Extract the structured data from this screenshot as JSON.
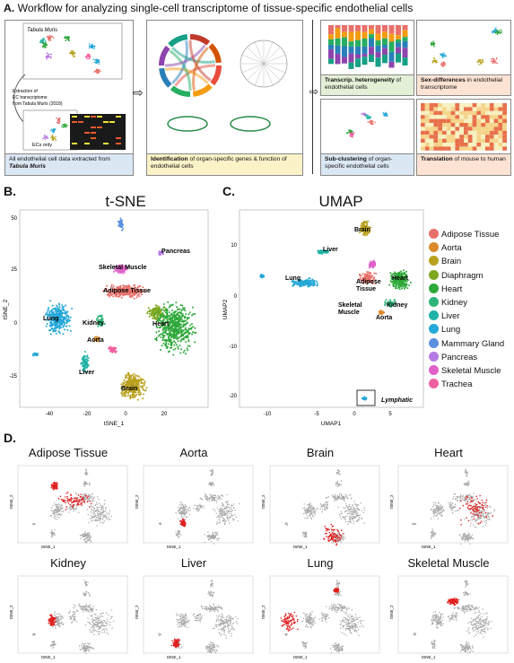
{
  "panelA": {
    "letter": "A.",
    "title": "Workflow for analyzing single-cell transcriptome of tissue-specific endothelial cells",
    "tabula_label": "Tabula Muris",
    "extraction_text": [
      "Extraction of",
      "EC transcriptome",
      "from Tabula Muris (2018)"
    ],
    "ecs_only": "ECs only",
    "box1_caption_plain": "All endothelial cell data extracted from ",
    "box1_caption_bold": "Tabula Muris",
    "box2_caption_bold": "Identification",
    "box2_caption_plain": " of organ-specific genes & function of endothelial cells",
    "box3_caption_bold": "Transcrip. heterogeneity",
    "box3_caption_plain": " of endothelial cells",
    "box4_caption_bold": "Sex-differences",
    "box4_caption_plain": " in endothelial transcriptome",
    "box5_caption_bold": "Sub-clustering",
    "box5_caption_plain": " of organ-specific endothelial cells",
    "box6_caption_bold": "Translation",
    "box6_caption_plain": " of mouse to human",
    "colors": {
      "box1_fill": "#dbe8f4",
      "box2_fill": "#fbf2c8",
      "box3_fill": "#e3efd6",
      "box4_fill": "#fde3d4",
      "box5_fill": "#dbe8f4",
      "box6_fill": "#fde3d4"
    }
  },
  "panelB": {
    "letter": "B.",
    "title": "t-SNE",
    "xlabel": "tSNE_1",
    "ylabel": "tSNE_2",
    "xticks": [
      "-40",
      "-20",
      "0",
      "20"
    ],
    "yticks": [
      "50",
      "25",
      "0",
      "-25"
    ],
    "cluster_labels": [
      "Pancreas",
      "Skeletal Muscle",
      "Adipose Tissue",
      "Lung",
      "Kidney",
      "Heart",
      "Aorta",
      "Liver",
      "Brain"
    ]
  },
  "panelC": {
    "letter": "C.",
    "title": "UMAP",
    "xlabel": "UMAP1",
    "ylabel": "UMAP2",
    "xticks": [
      "-10",
      "-5",
      "0",
      "5"
    ],
    "yticks": [
      "10",
      "0",
      "-10",
      "-20"
    ],
    "cluster_labels": [
      "Brain",
      "Liver",
      "Lung",
      "Adipose Tissue",
      "Heart",
      "Skeletal Muscle",
      "Kidney",
      "Aorta"
    ],
    "lymphatic_label": "Lymphatic"
  },
  "legend": [
    {
      "name": "Adipose Tissue",
      "color": "#e8706a"
    },
    {
      "name": "Aorta",
      "color": "#d98b2b"
    },
    {
      "name": "Brain",
      "color": "#b9a11e"
    },
    {
      "name": "Diaphragm",
      "color": "#7fa71f"
    },
    {
      "name": "Heart",
      "color": "#2ea83a"
    },
    {
      "name": "Kidney",
      "color": "#2fb47a"
    },
    {
      "name": "Liver",
      "color": "#21b3a6"
    },
    {
      "name": "Lung",
      "color": "#25a8d8"
    },
    {
      "name": "Mammary Gland",
      "color": "#5b8fe0"
    },
    {
      "name": "Pancreas",
      "color": "#b57ae3"
    },
    {
      "name": "Skeletal Muscle",
      "color": "#e061c9"
    },
    {
      "name": "Trachea",
      "color": "#f061a0"
    }
  ],
  "panelD": {
    "letter": "D.",
    "highlight_color": "#e02020",
    "background_color": "#a8a8a8",
    "tissues": [
      "Adipose Tissue",
      "Aorta",
      "Brain",
      "Heart",
      "Kidney",
      "Liver",
      "Lung",
      "Skeletal Muscle"
    ],
    "xlabel": "tSNE_1",
    "ylabel": "tSNE_2"
  }
}
